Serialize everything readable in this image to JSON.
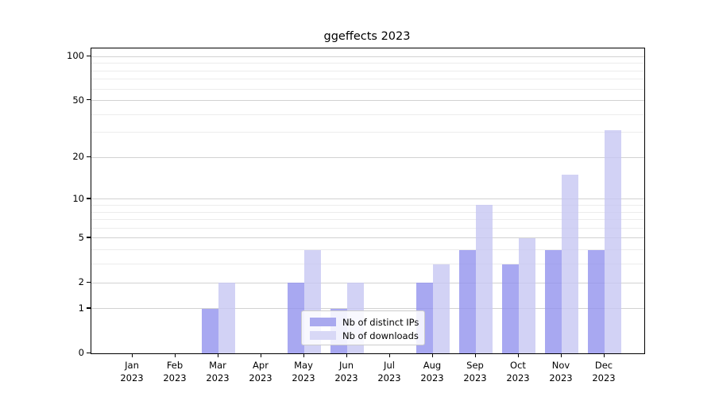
{
  "title": "ggeffects 2023",
  "chart_data": {
    "type": "bar",
    "title": "ggeffects 2023",
    "categories": [
      "Jan",
      "Feb",
      "Mar",
      "Apr",
      "May",
      "Jun",
      "Jul",
      "Aug",
      "Sep",
      "Oct",
      "Nov",
      "Dec"
    ],
    "category_year": "2023",
    "series": [
      {
        "name": "Nb of distinct IPs",
        "color_fill": "rgba(146,146,238,0.8)",
        "color_solid": "#a9a9ef",
        "values": [
          0,
          0,
          1,
          0,
          2,
          1,
          0,
          2,
          4,
          3,
          4,
          4
        ]
      },
      {
        "name": "Nb of downloads",
        "color_fill": "rgba(199,199,242,0.8)",
        "color_solid": "#d8d8f6",
        "values": [
          0,
          0,
          2,
          0,
          4,
          2,
          0,
          3,
          9,
          5,
          15,
          31
        ]
      }
    ],
    "xlabel": "",
    "ylabel": "",
    "yscale": "log1p",
    "ylim": [
      0,
      115
    ],
    "yticks_major": [
      0,
      1,
      2,
      5,
      10,
      20,
      50,
      100
    ],
    "ytick_labels": [
      "0",
      "1",
      "2",
      "5",
      "10",
      "20",
      "50",
      "100"
    ],
    "gridlines_minor": [
      3,
      4,
      6,
      7,
      8,
      9,
      30,
      40,
      60,
      70,
      80,
      90
    ],
    "grid": true,
    "legend_position": "lower center",
    "colors": {
      "axis": "#000000",
      "grid_major": "#d2d2d2",
      "grid_minor": "#ececec",
      "background": "#ffffff"
    }
  },
  "legend": {
    "items": [
      {
        "label": "Nb of distinct IPs"
      },
      {
        "label": "Nb of downloads"
      }
    ]
  }
}
